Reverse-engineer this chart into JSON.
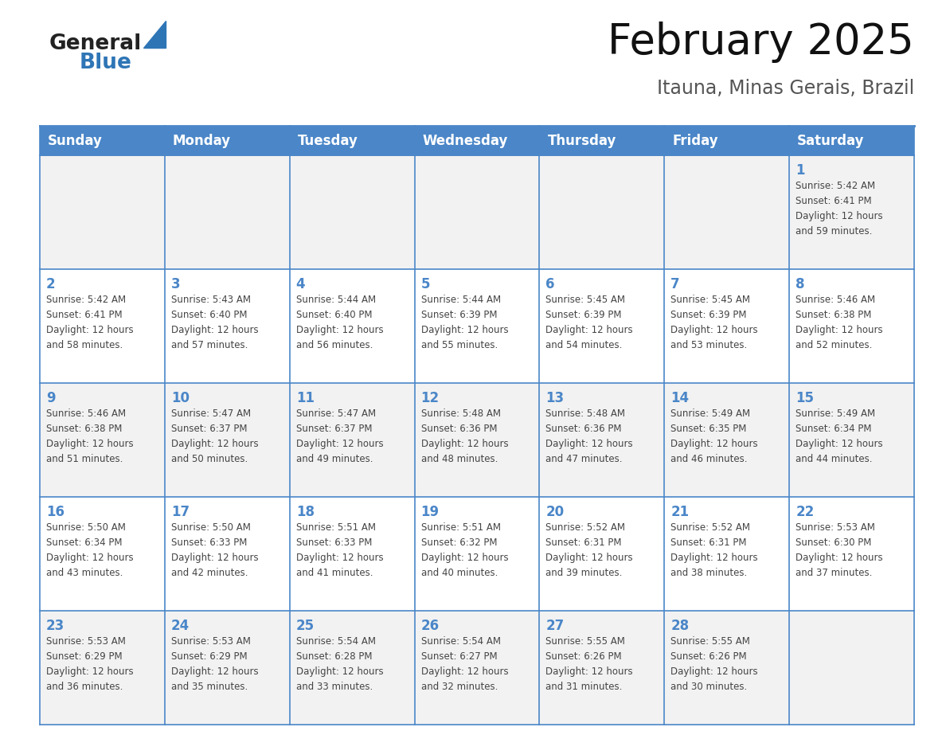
{
  "title": "February 2025",
  "subtitle": "Itauna, Minas Gerais, Brazil",
  "days_of_week": [
    "Sunday",
    "Monday",
    "Tuesday",
    "Wednesday",
    "Thursday",
    "Friday",
    "Saturday"
  ],
  "header_bg_color": "#4a86c8",
  "header_text_color": "#FFFFFF",
  "cell_bg_odd": "#F2F2F2",
  "cell_bg_even": "#FFFFFF",
  "border_color": "#4a86c8",
  "day_number_color": "#4a86c8",
  "text_color": "#444444",
  "logo_general_color": "#222222",
  "logo_blue_color": "#2E75B6",
  "calendar_data": [
    [
      null,
      null,
      null,
      null,
      null,
      null,
      1
    ],
    [
      2,
      3,
      4,
      5,
      6,
      7,
      8
    ],
    [
      9,
      10,
      11,
      12,
      13,
      14,
      15
    ],
    [
      16,
      17,
      18,
      19,
      20,
      21,
      22
    ],
    [
      23,
      24,
      25,
      26,
      27,
      28,
      null
    ]
  ],
  "sun_data": {
    "1": {
      "sunrise": "5:42 AM",
      "sunset": "6:41 PM",
      "daylight_hours": 12,
      "daylight_minutes": 59
    },
    "2": {
      "sunrise": "5:42 AM",
      "sunset": "6:41 PM",
      "daylight_hours": 12,
      "daylight_minutes": 58
    },
    "3": {
      "sunrise": "5:43 AM",
      "sunset": "6:40 PM",
      "daylight_hours": 12,
      "daylight_minutes": 57
    },
    "4": {
      "sunrise": "5:44 AM",
      "sunset": "6:40 PM",
      "daylight_hours": 12,
      "daylight_minutes": 56
    },
    "5": {
      "sunrise": "5:44 AM",
      "sunset": "6:39 PM",
      "daylight_hours": 12,
      "daylight_minutes": 55
    },
    "6": {
      "sunrise": "5:45 AM",
      "sunset": "6:39 PM",
      "daylight_hours": 12,
      "daylight_minutes": 54
    },
    "7": {
      "sunrise": "5:45 AM",
      "sunset": "6:39 PM",
      "daylight_hours": 12,
      "daylight_minutes": 53
    },
    "8": {
      "sunrise": "5:46 AM",
      "sunset": "6:38 PM",
      "daylight_hours": 12,
      "daylight_minutes": 52
    },
    "9": {
      "sunrise": "5:46 AM",
      "sunset": "6:38 PM",
      "daylight_hours": 12,
      "daylight_minutes": 51
    },
    "10": {
      "sunrise": "5:47 AM",
      "sunset": "6:37 PM",
      "daylight_hours": 12,
      "daylight_minutes": 50
    },
    "11": {
      "sunrise": "5:47 AM",
      "sunset": "6:37 PM",
      "daylight_hours": 12,
      "daylight_minutes": 49
    },
    "12": {
      "sunrise": "5:48 AM",
      "sunset": "6:36 PM",
      "daylight_hours": 12,
      "daylight_minutes": 48
    },
    "13": {
      "sunrise": "5:48 AM",
      "sunset": "6:36 PM",
      "daylight_hours": 12,
      "daylight_minutes": 47
    },
    "14": {
      "sunrise": "5:49 AM",
      "sunset": "6:35 PM",
      "daylight_hours": 12,
      "daylight_minutes": 46
    },
    "15": {
      "sunrise": "5:49 AM",
      "sunset": "6:34 PM",
      "daylight_hours": 12,
      "daylight_minutes": 44
    },
    "16": {
      "sunrise": "5:50 AM",
      "sunset": "6:34 PM",
      "daylight_hours": 12,
      "daylight_minutes": 43
    },
    "17": {
      "sunrise": "5:50 AM",
      "sunset": "6:33 PM",
      "daylight_hours": 12,
      "daylight_minutes": 42
    },
    "18": {
      "sunrise": "5:51 AM",
      "sunset": "6:33 PM",
      "daylight_hours": 12,
      "daylight_minutes": 41
    },
    "19": {
      "sunrise": "5:51 AM",
      "sunset": "6:32 PM",
      "daylight_hours": 12,
      "daylight_minutes": 40
    },
    "20": {
      "sunrise": "5:52 AM",
      "sunset": "6:31 PM",
      "daylight_hours": 12,
      "daylight_minutes": 39
    },
    "21": {
      "sunrise": "5:52 AM",
      "sunset": "6:31 PM",
      "daylight_hours": 12,
      "daylight_minutes": 38
    },
    "22": {
      "sunrise": "5:53 AM",
      "sunset": "6:30 PM",
      "daylight_hours": 12,
      "daylight_minutes": 37
    },
    "23": {
      "sunrise": "5:53 AM",
      "sunset": "6:29 PM",
      "daylight_hours": 12,
      "daylight_minutes": 36
    },
    "24": {
      "sunrise": "5:53 AM",
      "sunset": "6:29 PM",
      "daylight_hours": 12,
      "daylight_minutes": 35
    },
    "25": {
      "sunrise": "5:54 AM",
      "sunset": "6:28 PM",
      "daylight_hours": 12,
      "daylight_minutes": 33
    },
    "26": {
      "sunrise": "5:54 AM",
      "sunset": "6:27 PM",
      "daylight_hours": 12,
      "daylight_minutes": 32
    },
    "27": {
      "sunrise": "5:55 AM",
      "sunset": "6:26 PM",
      "daylight_hours": 12,
      "daylight_minutes": 31
    },
    "28": {
      "sunrise": "5:55 AM",
      "sunset": "6:26 PM",
      "daylight_hours": 12,
      "daylight_minutes": 30
    }
  }
}
